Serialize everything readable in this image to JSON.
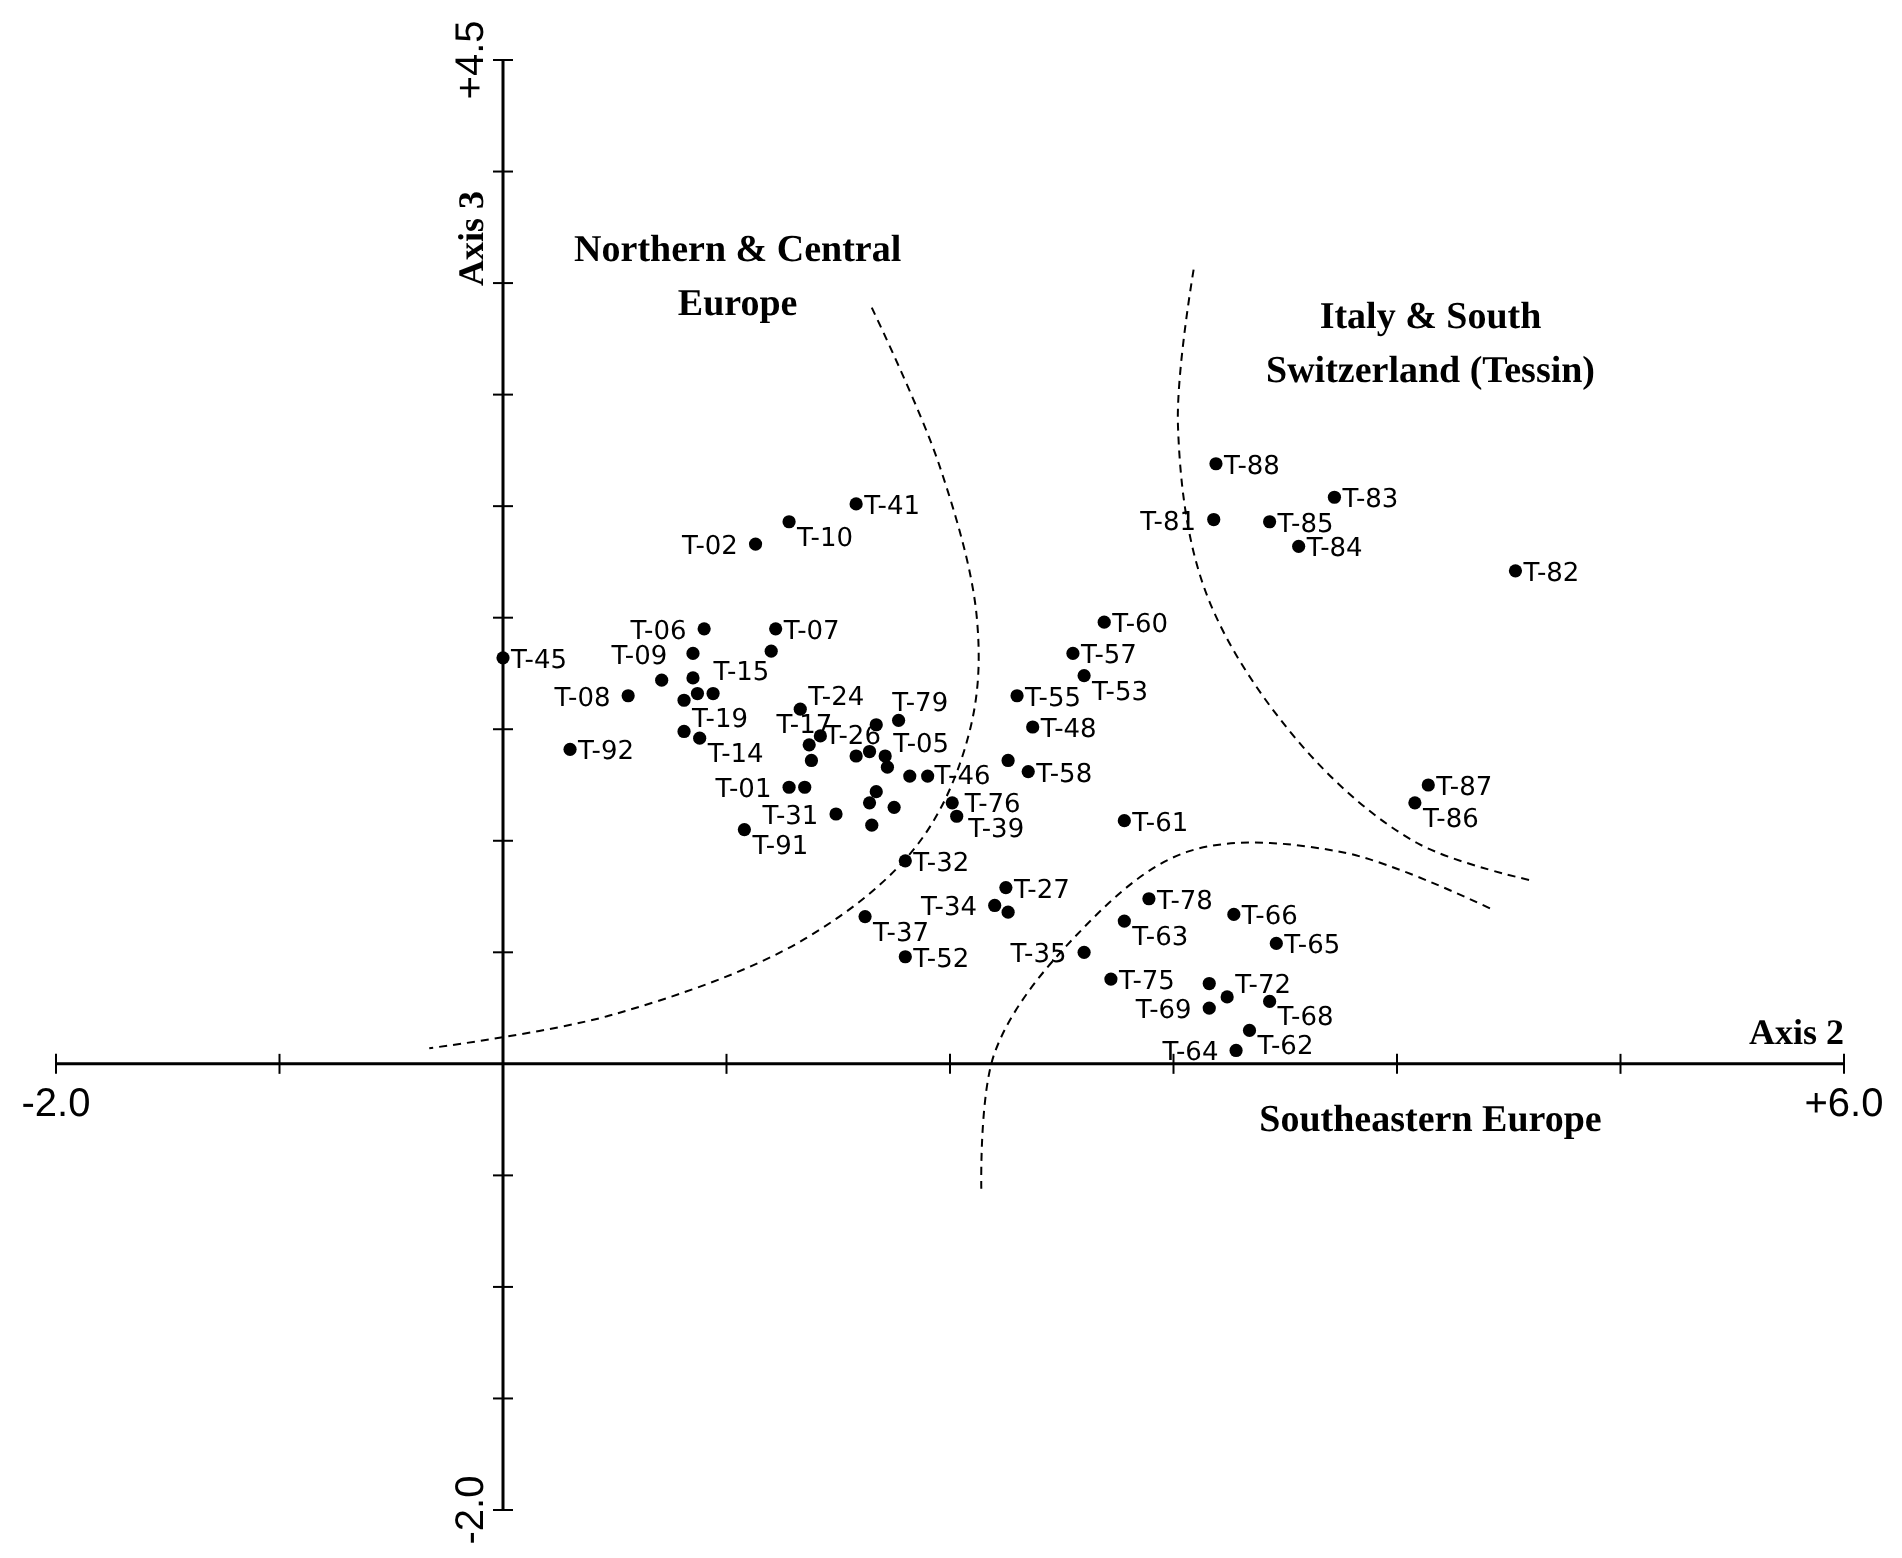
{
  "chart_data": {
    "type": "scatter",
    "xlabel": "Axis 2",
    "ylabel": "Axis 3",
    "xlim": [
      -2,
      6
    ],
    "ylim": [
      -2,
      4.5
    ],
    "xticks": [
      {
        "value": -2,
        "label": "-2.0"
      },
      {
        "value": -1,
        "label": null
      },
      {
        "value": 0,
        "label": null
      },
      {
        "value": 1,
        "label": null
      },
      {
        "value": 2,
        "label": null
      },
      {
        "value": 3,
        "label": null
      },
      {
        "value": 4,
        "label": null
      },
      {
        "value": 5,
        "label": null
      },
      {
        "value": 6,
        "label": "+6.0"
      }
    ],
    "yticks": [
      {
        "value": -2,
        "label": "-2.0"
      },
      {
        "value": -1.5,
        "label": null
      },
      {
        "value": -1,
        "label": null
      },
      {
        "value": -0.5,
        "label": null
      },
      {
        "value": 0.5,
        "label": null
      },
      {
        "value": 1,
        "label": null
      },
      {
        "value": 1.5,
        "label": null
      },
      {
        "value": 2,
        "label": null
      },
      {
        "value": 2.5,
        "label": null
      },
      {
        "value": 3,
        "label": null
      },
      {
        "value": 3.5,
        "label": null
      },
      {
        "value": 4,
        "label": null
      },
      {
        "value": 4.5,
        "label": "+4.5"
      }
    ],
    "marker": "circle",
    "grid": false,
    "annotations": [
      "Northern & Central Europe",
      "Italy & South Switzerland (Tessin)",
      "Southeastern Europe"
    ],
    "series": [
      {
        "type": "line",
        "color": "#000000",
        "line_style": "dashed",
        "marker": "none",
        "x": [
          1.65,
          1.95,
          2.12,
          2.09,
          1.86,
          1.35,
          0.49,
          -0.33
        ],
        "values": [
          3.39,
          2.69,
          2.0,
          1.5,
          0.99,
          0.56,
          0.22,
          0.07
        ]
      },
      {
        "type": "line",
        "color": "#000000",
        "line_style": "dashed",
        "marker": "none",
        "x": [
          3.09,
          3.02,
          3.15,
          3.58,
          4.09,
          4.61
        ],
        "values": [
          3.56,
          2.86,
          2.1,
          1.42,
          0.99,
          0.82
        ]
      },
      {
        "type": "line",
        "color": "#000000",
        "line_style": "dashed",
        "marker": "none",
        "x": [
          2.14,
          2.2,
          2.55,
          3.06,
          3.75,
          4.43
        ],
        "values": [
          -0.56,
          0.05,
          0.56,
          0.95,
          0.95,
          0.69
        ]
      },
      {
        "color": "#000000",
        "x": [
          1.58,
          1.28,
          1.13,
          0.9,
          1.22,
          1.2,
          0.85,
          0.56,
          0.71,
          0.85,
          0.81,
          0.87,
          0.94,
          1.33,
          0.81,
          0.88,
          0.3,
          1.42,
          1.37,
          1.38,
          1.58,
          1.64,
          1.71,
          1.72,
          1.67,
          1.77,
          1.82,
          1.9,
          1.28,
          1.35,
          1.49,
          1.67,
          1.64,
          1.75,
          1.65,
          1.08,
          1.8,
          2.69,
          2.55,
          2.6,
          2.3,
          2.37,
          2.26,
          2.35,
          2.01,
          2.03,
          2.78,
          2.25,
          2.2,
          2.26,
          1.62,
          2.89,
          2.78,
          3.27,
          3.46,
          2.6,
          1.8,
          2.72,
          3.24,
          3.16,
          3.43,
          3.16,
          3.34,
          3.28,
          3.19,
          3.18,
          3.43,
          3.72,
          3.56,
          4.53,
          4.14,
          4.08,
          0.0
        ],
        "values": [
          2.51,
          2.43,
          2.33,
          1.95,
          1.95,
          1.85,
          1.84,
          1.65,
          1.72,
          1.73,
          1.63,
          1.66,
          1.66,
          1.59,
          1.49,
          1.46,
          1.41,
          1.47,
          1.43,
          1.36,
          1.38,
          1.4,
          1.38,
          1.33,
          1.52,
          1.54,
          1.29,
          1.29,
          1.24,
          1.24,
          1.12,
          1.22,
          1.17,
          1.15,
          1.07,
          1.05,
          0.91,
          1.98,
          1.84,
          1.74,
          1.65,
          1.51,
          1.36,
          1.31,
          1.17,
          1.11,
          1.09,
          0.79,
          0.71,
          0.68,
          0.66,
          0.74,
          0.64,
          0.67,
          0.54,
          0.5,
          0.48,
          0.38,
          0.3,
          0.36,
          0.28,
          0.25,
          0.15,
          0.06,
          2.69,
          2.44,
          2.43,
          2.54,
          2.32,
          2.21,
          1.25,
          1.17,
          1.82
        ],
        "value_labels": [
          "T-41",
          "T-10",
          "T-02",
          "T-06",
          "T-07",
          null,
          null,
          "T-08",
          null,
          "T-09",
          null,
          "T-15",
          null,
          "T-24",
          "T-19",
          "T-14",
          "T-92",
          null,
          "T-17",
          null,
          null,
          null,
          "T-05",
          null,
          "T-79",
          "T-26",
          null,
          null,
          "T-01",
          null,
          "T-31",
          null,
          null,
          null,
          null,
          "T-91",
          "T-32",
          "T-60",
          "T-57",
          "T-53",
          "T-55",
          "T-48",
          "T-46",
          "T-58",
          "T-39",
          "T-76",
          "T-61",
          "T-27",
          "T-34",
          null,
          "T-37",
          "T-78",
          "T-63",
          "T-66",
          "T-65",
          "T-35",
          "T-52",
          "T-75",
          "T-72",
          null,
          "T-68",
          "T-69",
          "T-62",
          "T-64",
          "T-88",
          "T-81",
          "T-85",
          "T-83",
          "T-84",
          "T-82",
          "T-87",
          "T-86",
          "T-45"
        ]
      }
    ]
  }
}
